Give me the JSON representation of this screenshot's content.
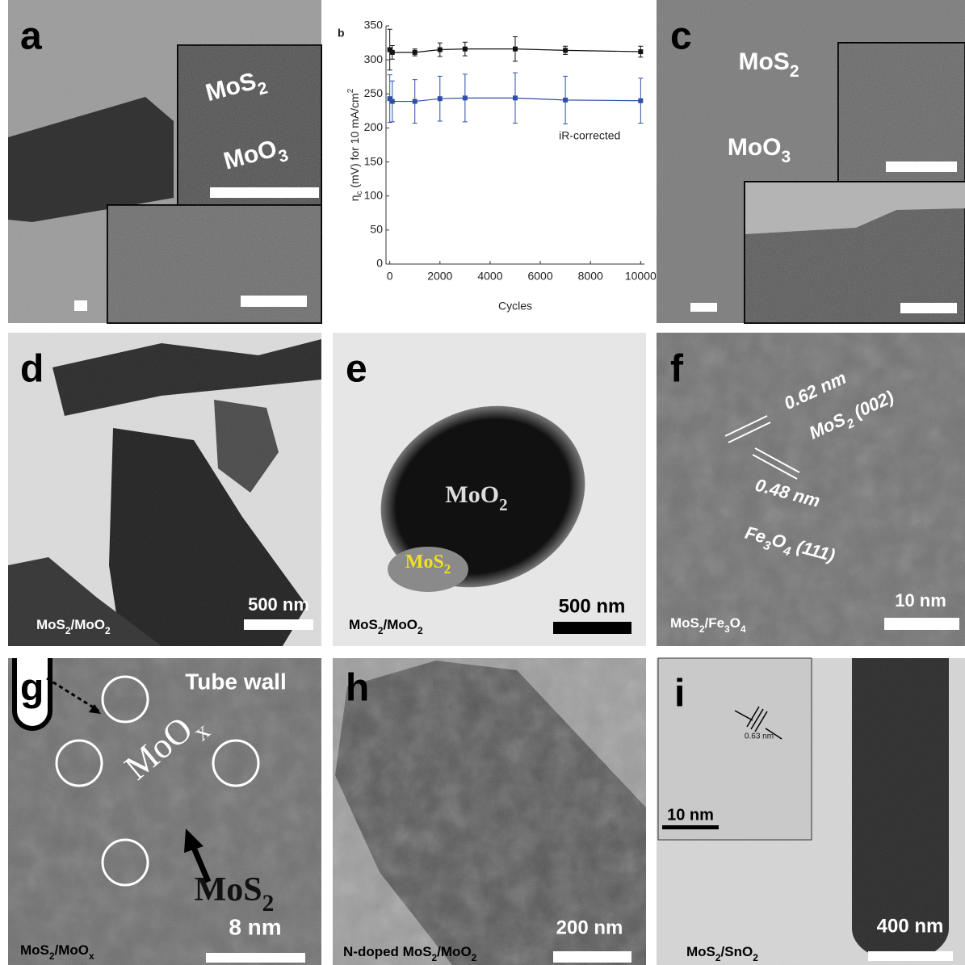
{
  "panels": {
    "a": {
      "letter": "a",
      "labels": [
        "MoS2",
        "MoO3"
      ]
    },
    "b": {
      "letter": "b"
    },
    "c": {
      "letter": "c",
      "labels": [
        "MoS2",
        "MoO3"
      ]
    },
    "d": {
      "letter": "d",
      "labels": [
        "500 nm",
        "MoS2/MoO2"
      ]
    },
    "e": {
      "letter": "e",
      "labels": [
        "MoO2",
        "MoS2",
        "500 nm",
        "MoS2/MoO2"
      ]
    },
    "f": {
      "letter": "f",
      "labels": [
        "0.62 nm",
        "MoS2 (002)",
        "0.48 nm",
        "Fe3O4 (111)",
        "10 nm",
        "MoS2/Fe3O4"
      ]
    },
    "g": {
      "letter": "g",
      "labels": [
        "Tube wall",
        "MoOx",
        "MoS2",
        "8 nm",
        "MoS2/MoOx"
      ]
    },
    "h": {
      "letter": "h",
      "labels": [
        "200 nm",
        "N-doped MoS2/MoO2"
      ]
    },
    "i": {
      "letter": "i",
      "labels": [
        "0.63 nm",
        "10 nm",
        "400 nm",
        "MoS2/SnO2"
      ]
    }
  },
  "chart_data": {
    "type": "line",
    "xlabel": "Cycles",
    "ylabel": "ηc (mV) for 10 mA/cm2",
    "x": [
      0,
      100,
      1000,
      2000,
      3000,
      5000,
      7000,
      10000
    ],
    "series": [
      {
        "color": "#111111",
        "values": [
          315,
          311,
          311,
          315,
          316,
          316,
          314,
          312
        ],
        "errors": [
          30,
          10,
          5,
          10,
          10,
          18,
          6,
          8
        ]
      },
      {
        "name": "iR-corrected",
        "color": "#2f4fa8",
        "values": [
          243,
          239,
          239,
          243,
          244,
          244,
          241,
          240
        ],
        "errors": [
          35,
          30,
          32,
          33,
          35,
          37,
          35,
          33
        ]
      }
    ],
    "xlim": [
      -150,
      10150
    ],
    "ylim": [
      0,
      350
    ],
    "xticks": [
      0,
      2000,
      4000,
      6000,
      8000,
      10000
    ],
    "yticks": [
      0,
      50,
      100,
      150,
      200,
      250,
      300,
      350
    ]
  }
}
